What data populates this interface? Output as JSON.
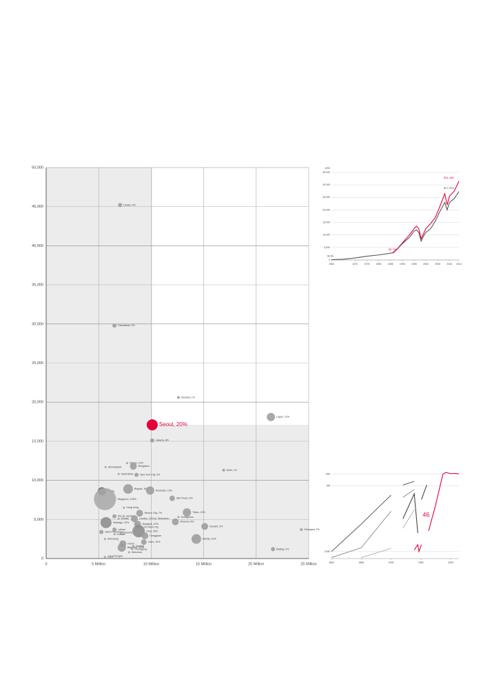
{
  "chart_data": [
    {
      "type": "bubble",
      "color": "#9a9a9a",
      "highlight_color": "#e4003b",
      "grid": true,
      "xlim": [
        0,
        25000000
      ],
      "ylim": [
        0,
        50000
      ],
      "xticks": [
        0,
        {
          "value": 5000000,
          "label": "5 Million"
        },
        {
          "value": 10000000,
          "label": "10 Million"
        },
        {
          "value": 15000000,
          "label": "15 Million"
        },
        {
          "value": 20000000,
          "label": "20 Million"
        },
        {
          "value": 25000000,
          "label": "25 Million"
        }
      ],
      "yticks": [
        0,
        {
          "value": 5000,
          "label": "5,000"
        },
        {
          "value": 10000,
          "label": "10,000"
        },
        {
          "value": 15000,
          "label": "15,000"
        },
        {
          "value": 20000,
          "label": "20,000"
        },
        {
          "value": 25000,
          "label": "25,000"
        },
        {
          "value": 30000,
          "label": "30,000"
        },
        {
          "value": 35000,
          "label": "35,000"
        },
        {
          "value": 40000,
          "label": "40,000"
        },
        {
          "value": 45000,
          "label": "45,000"
        },
        {
          "value": 50000,
          "label": "50,000"
        }
      ],
      "labels": [
        "Dhaka, 4%",
        "Faisalabad, 3%",
        "Mumbai, 1%",
        "Lagos, 12%",
        "Seoul, 20%",
        "Jakarta, 8%",
        "Delhi, 1%",
        "Tehran, 10%",
        "Bengaluru",
        "Ahmedabad",
        "Hyderabad",
        "New York City, 3%",
        "Bogotá, 16%",
        "Kinshasa, 13%",
        "São Paulo, 6%",
        "Tianjin",
        "Singapore, 100%",
        "Hong Kong",
        "Rio de Janeiro",
        "Mexico City, 7%",
        "Tokyo, 10%",
        "Wuhan",
        "London, 13%",
        "Shenzhen",
        "Guangzhou",
        "Moscow, 8%",
        "Santiago, 22%",
        "Bangkok, 12%",
        "Ho Chi Minh City",
        "Karachi, 3%",
        "Lima, 28%",
        "Shanghai, 2%",
        "Saint Petersburg",
        "Lahore",
        "Kolkata",
        "Chennai",
        "Dongguan",
        "Cairo, 10%",
        "Manila, 10%",
        "Shenyang",
        "Hanoi",
        "Nanjing",
        "Baghdad, 31%",
        "Chongqing",
        "Wenzhou",
        "Beijing, 2%",
        "Surat",
        "Chengdu"
      ],
      "x": [
        7040000,
        6500000,
        12600000,
        21400000,
        10100000,
        10100000,
        16900000,
        7700000,
        8300000,
        5660000,
        6900000,
        8600000,
        7800000,
        9900000,
        12000000,
        5300000,
        5600000,
        7400000,
        6500000,
        8900000,
        13400000,
        6900000,
        8400000,
        10400000,
        12600000,
        12300000,
        5700000,
        8700000,
        8700000,
        15100000,
        8800000,
        24300000,
        5260000,
        6500000,
        6500000,
        7100000,
        9400000,
        9300000,
        14300000,
        5600000,
        7300000,
        8300000,
        7200000,
        8200000,
        7900000,
        21600000,
        5600000,
        6100000
      ],
      "values": [
        45200,
        29800,
        20600,
        18100,
        17100,
        15100,
        11300,
        12200,
        11800,
        11700,
        10800,
        10700,
        8900,
        8700,
        7700,
        8600,
        7600,
        6500,
        5400,
        5800,
        5900,
        5100,
        5100,
        5100,
        5300,
        4700,
        4600,
        4400,
        4000,
        4100,
        3500,
        3700,
        3400,
        3700,
        3100,
        3300,
        2900,
        2100,
        2500,
        2500,
        1900,
        1600,
        1400,
        1200,
        800,
        1200,
        200,
        300
      ],
      "sizes": [
        3,
        3,
        2,
        6,
        8,
        3,
        2,
        1.5,
        5,
        1.5,
        1.5,
        3,
        7,
        6,
        4,
        6,
        16,
        1.5,
        3,
        5,
        6,
        1.5,
        5,
        1.5,
        1.5,
        5,
        8,
        5,
        1.5,
        5,
        9,
        2,
        3,
        3,
        1.5,
        1.5,
        5,
        4,
        7,
        1.5,
        5,
        1.5,
        6,
        1.5,
        1.5,
        3,
        1.5,
        1.5
      ],
      "colors": [
        "#9a9a9a",
        "#9a9a9a",
        "#9a9a9a",
        "#9a9a9a",
        "#e4003b",
        "#9a9a9a",
        "#9a9a9a",
        "#9a9a9a",
        "#9a9a9a",
        "#9a9a9a",
        "#9a9a9a",
        "#9a9a9a",
        "#9a9a9a",
        "#9a9a9a",
        "#9a9a9a",
        "#6f6f6f",
        "#a8a8a8",
        "#9a9a9a",
        "#9a9a9a",
        "#9a9a9a",
        "#9a9a9a",
        "#9a9a9a",
        "#9a9a9a",
        "#9a9a9a",
        "#9a9a9a",
        "#9a9a9a",
        "#8a8a8a",
        "#9a9a9a",
        "#9a9a9a",
        "#9a9a9a",
        "#8a8a8a",
        "#9a9a9a",
        "#9a9a9a",
        "#9a9a9a",
        "#9a9a9a",
        "#9a9a9a",
        "#9a9a9a",
        "#9a9a9a",
        "#9a9a9a",
        "#9a9a9a",
        "#9a9a9a",
        "#9a9a9a",
        "#9a9a9a",
        "#9a9a9a",
        "#9a9a9a",
        "#9a9a9a",
        "#9a9a9a",
        "#9a9a9a"
      ]
    },
    {
      "type": "line",
      "y_label": "USD",
      "grid": true,
      "log_y": false,
      "xlim": [
        1960,
        2014
      ],
      "ylim": [
        0,
        35000
      ],
      "xticks": [
        1960,
        1970,
        1975,
        1980,
        1985,
        1990,
        1995,
        2000,
        2005,
        2010,
        2014
      ],
      "yticks": [
        0,
        {
          "value": 5000,
          "label": "5,000"
        },
        {
          "value": 10000,
          "label": "10,000"
        },
        {
          "value": 15000,
          "label": "15,000"
        },
        {
          "value": 20000,
          "label": "20,000"
        },
        {
          "value": 25000,
          "label": "25,000"
        },
        {
          "value": 30000,
          "label": "30,000"
        },
        {
          "value": 35000,
          "label": "35,000"
        }
      ],
      "x": [
        1960,
        1965,
        1970,
        1975,
        1980,
        1985,
        1986,
        1988,
        1990,
        1993,
        1995,
        1996,
        1997,
        1998,
        1999,
        2000,
        2002,
        2004,
        2006,
        2008,
        2009,
        2010,
        2012,
        2014
      ],
      "series": [
        {
          "color": "#555555",
          "values": [
            136,
            300,
            800,
            1500,
            2000,
            2700,
            2900,
            4500,
            6500,
            9000,
            11500,
            12000,
            11000,
            7500,
            9500,
            11000,
            12500,
            15500,
            19500,
            23000,
            20000,
            23000,
            24500,
            27353
          ]
        },
        {
          "color": "#e4003b",
          "values": [
            null,
            null,
            null,
            null,
            null,
            null,
            2706,
            4500,
            6800,
            10000,
            12500,
            13500,
            12500,
            8500,
            10500,
            12500,
            14500,
            17000,
            21500,
            26500,
            22000,
            25500,
            27500,
            31446
          ]
        }
      ],
      "annotations": [
        {
          "text": "$136",
          "x": 1960,
          "y": 136,
          "color": "#555555"
        },
        {
          "text": "$2,706",
          "x": 1986,
          "y": 2706,
          "color": "#e4003b"
        },
        {
          "text": "$31,446",
          "x": 2014,
          "y": 31446,
          "color": "#e4003b"
        },
        {
          "text": "$27,353",
          "x": 2014,
          "y": 27353,
          "color": "#555555"
        }
      ]
    },
    {
      "type": "line",
      "grid": true,
      "log_y": true,
      "xlim": [
        1800,
        2014
      ],
      "ylim": [
        66000,
        16000000
      ],
      "xticks": [
        1800,
        1850,
        1900,
        1950,
        2000
      ],
      "yticks": [
        {
          "value": 100000,
          "label": "100K"
        },
        {
          "value": 5000000,
          "label": "5M"
        },
        {
          "value": 10000000,
          "label": "10M"
        }
      ],
      "x": [
        1800,
        1850,
        1900,
        1905,
        1920,
        1939,
        1945,
        1947,
        1951,
        1960,
        1963,
        1974,
        1987,
        1992,
        2000,
        2009,
        2014
      ],
      "series": [
        {
          "color": "#666666",
          "values": [
            100000,
            510000,
            2860000,
            null,
            5200000,
            6500000,
            null,
            null,
            7000000,
            null,
            null,
            7500000,
            null,
            null,
            8000000,
            null,
            9000000
          ]
        },
        {
          "color": "#999999",
          "values": [
            70000,
            125000,
            1100000,
            null,
            2500000,
            4000000,
            null,
            null,
            5200000,
            null,
            null,
            7000000,
            null,
            null,
            8000000,
            null,
            8500000
          ]
        },
        {
          "color": "#444444",
          "values": [
            null,
            null,
            100000,
            null,
            700000,
            3100000,
            300000,
            null,
            2200000,
            5200000,
            null,
            8500000,
            null,
            null,
            9000000,
            null,
            9300000
          ]
        },
        {
          "color": "#bbbbbb",
          "values": [
            null,
            70000,
            120000,
            null,
            400000,
            1200000,
            null,
            null,
            2500000,
            null,
            null,
            5500000,
            null,
            null,
            6500000,
            null,
            8000000
          ]
        },
        {
          "color": "#e4003b",
          "values": [
            null,
            null,
            null,
            70000,
            null,
            110000,
            150000,
            100000,
            150000,
            null,
            340000,
            1400000,
            9800000,
            11000000,
            10300000,
            10400000,
            10100000
          ]
        }
      ],
      "annotations": [
        {
          "text": "46",
          "x": 1960,
          "y": 700000,
          "color": "#e4003b"
        }
      ]
    }
  ]
}
